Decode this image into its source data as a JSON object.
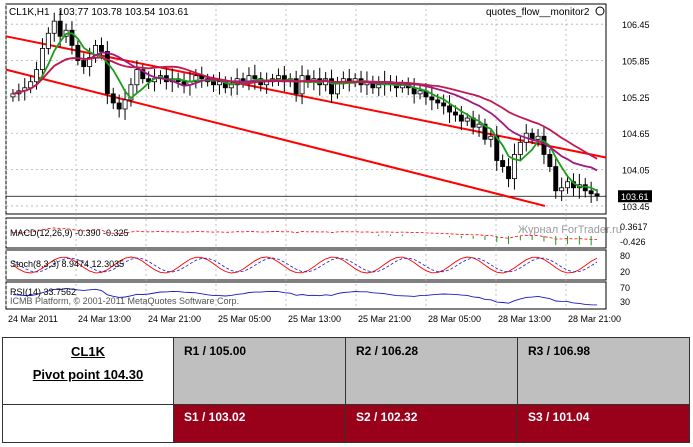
{
  "chart_header": {
    "symbol_timeframe": "CL1K,H1",
    "ohlc": "103.77 103.78 103.54 103.61",
    "indicator_name": "quotes_flow__monitor2"
  },
  "watermark": {
    "site": "Журнал ForTrader.ru",
    "copyright": "ICMB Platform, © 2001-2011 MetaQuotes Software Corp."
  },
  "chart_data": [
    {
      "type": "candlestick",
      "title": "CL1K,H1",
      "price_ticks": [
        "106.45",
        "105.85",
        "105.25",
        "104.65",
        "104.05",
        "103.45"
      ],
      "current_price": "103.61",
      "ylim": [
        103.35,
        106.75
      ],
      "x_ticks": [
        "24 Mar 2011",
        "24 Mar 13:00",
        "24 Mar 21:00",
        "25 Mar 05:00",
        "25 Mar 13:00",
        "25 Mar 21:00",
        "28 Mar 05:00",
        "28 Mar 13:00",
        "28 Mar 21:00"
      ],
      "closes": [
        105.3,
        105.35,
        105.4,
        105.5,
        105.7,
        106.05,
        106.3,
        106.5,
        106.25,
        106.35,
        106.1,
        105.85,
        105.75,
        105.9,
        106.1,
        106.0,
        105.3,
        105.15,
        105.05,
        105.2,
        105.45,
        105.7,
        105.55,
        105.5,
        105.55,
        105.6,
        105.5,
        105.55,
        105.5,
        105.45,
        105.5,
        105.6,
        105.55,
        105.5,
        105.45,
        105.5,
        105.4,
        105.45,
        105.55,
        105.5,
        105.6,
        105.55,
        105.45,
        105.5,
        105.55,
        105.6,
        105.5,
        105.55,
        105.3,
        105.6,
        105.5,
        105.55,
        105.45,
        105.55,
        105.3,
        105.5,
        105.55,
        105.5,
        105.55,
        105.45,
        105.5,
        105.4,
        105.45,
        105.5,
        105.45,
        105.4,
        105.45,
        105.4,
        105.3,
        105.35,
        105.25,
        105.2,
        105.15,
        105.1,
        105.0,
        104.95,
        104.85,
        104.9,
        104.75,
        104.8,
        104.55,
        104.6,
        104.2,
        104.1,
        103.9,
        104.3,
        104.5,
        104.65,
        104.55,
        104.6,
        104.3,
        104.1,
        103.7,
        103.75,
        103.85,
        103.75,
        103.8,
        103.7,
        103.65,
        103.61
      ],
      "series": [
        {
          "name": "",
          "color": "#1a9e1a"
        },
        {
          "name": "",
          "color": "#a01a80"
        },
        {
          "name": "",
          "color": "#c01a50"
        }
      ],
      "channel": {
        "color": "#ff0000"
      }
    },
    {
      "type": "line",
      "title": "MACD(12,26,9) -0.390 -0.325",
      "scale_labels": [
        "0.3617",
        "-0.426"
      ]
    },
    {
      "type": "line",
      "title": "Stoch(8,3,3) 8.9474 12.3035",
      "scale_labels": [
        "80",
        "20"
      ]
    },
    {
      "type": "line",
      "title": "RSI(14) 33.7562",
      "scale_labels": [
        "70",
        "30"
      ]
    }
  ],
  "pivot_table": {
    "instrument": "CL1K",
    "pivot_point": "Pivot point 104.30",
    "resistances": [
      "R1 / 105.00",
      "R2  / 106.28",
      "R3 / 106.98"
    ],
    "supports": [
      "S1 / 103.02",
      "S2 /  102.32",
      "S3 /  101.04"
    ],
    "colors": {
      "resistance_bg": "#bfbfbf",
      "support_bg": "#99001a"
    }
  }
}
